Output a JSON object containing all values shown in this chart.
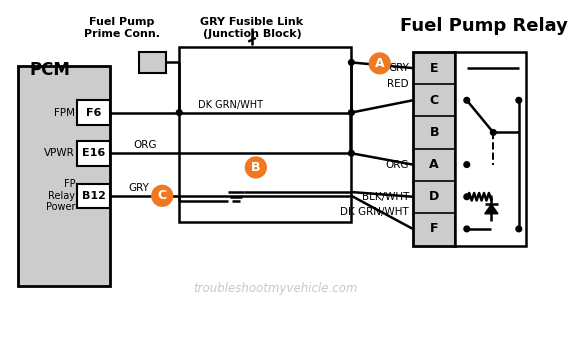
{
  "bg_color": "#ffffff",
  "title": "Fuel Pump Relay",
  "orange": "#F07820",
  "gray_box": "#cccccc",
  "line_color": "#000000",
  "watermark": "troubleshootmyvehicle.com",
  "figsize": [
    5.8,
    3.5
  ],
  "dpi": 100,
  "pcm_label": "PCM",
  "prime_label1": "Fuel Pump",
  "prime_label2": "Prime Conn.",
  "fusible_label1": "GRY Fusible Link",
  "fusible_label2": "(Junction Block)",
  "pins": [
    "E",
    "C",
    "B",
    "A",
    "D",
    "F"
  ],
  "pin_labels_left": [
    "GRY",
    "RED",
    "",
    "ORG",
    "BLK/WHT",
    "DK GRN/WHT"
  ],
  "wire1_label": "DK GRN/WHT",
  "wire2_label": "ORG",
  "wire3_label": "GRY",
  "fpm_label": "FPM",
  "vpwr_label": "VPWR",
  "fp_label": "FP\nRelay\nPower",
  "f6_label": "F6",
  "e16_label": "E16",
  "b12_label": "B12"
}
